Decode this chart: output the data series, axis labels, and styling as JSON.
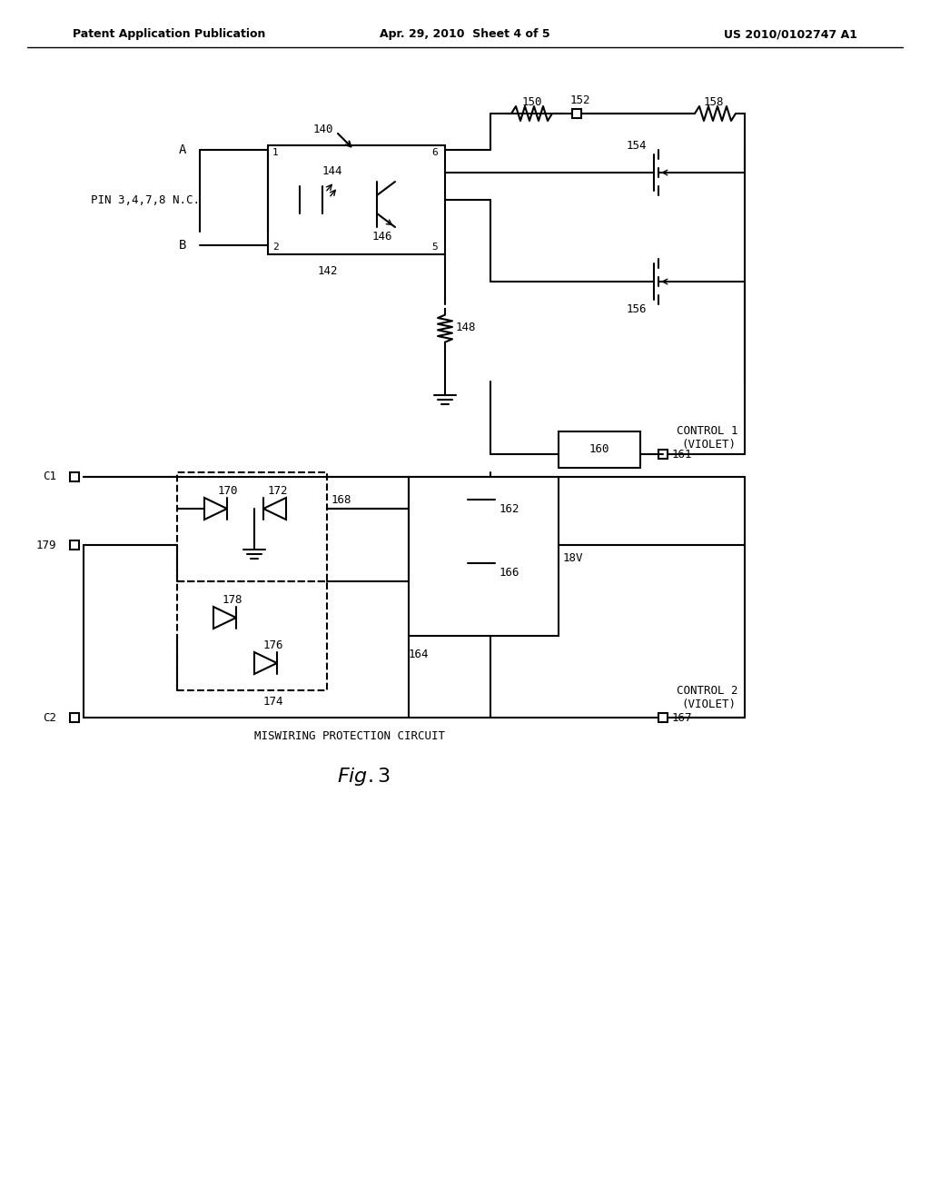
{
  "title_left": "Patent Application Publication",
  "title_center": "Apr. 29, 2010  Sheet 4 of 5",
  "title_right": "US 2010/0102747 A1",
  "fig_label": "Fig. 3",
  "background": "#ffffff",
  "line_color": "#000000",
  "text_color": "#000000"
}
